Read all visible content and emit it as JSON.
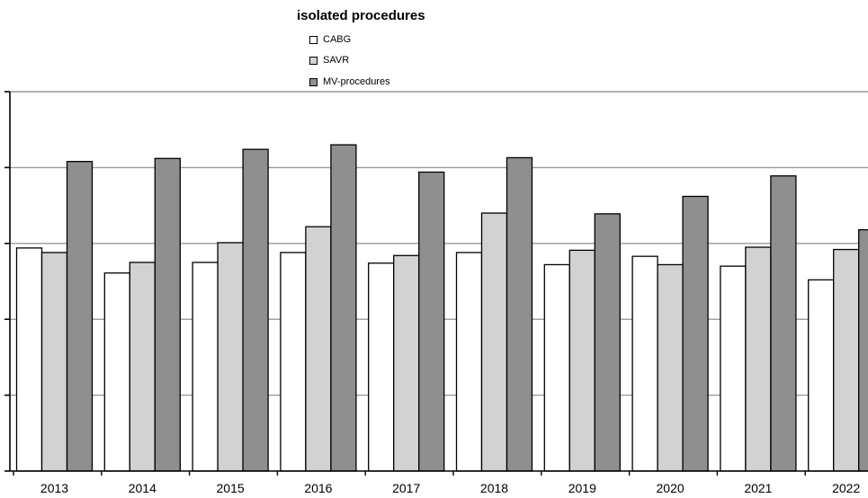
{
  "chart_data": {
    "type": "bar",
    "title": "isolated procedures",
    "xlabel": "",
    "ylabel": "",
    "categories": [
      "2013",
      "2014",
      "2015",
      "2016",
      "2017",
      "2018",
      "2019",
      "2020",
      "2021",
      "2022"
    ],
    "series": [
      {
        "name": "CABG",
        "color": "#ffffff",
        "values": [
          2.94,
          2.61,
          2.75,
          2.88,
          2.74,
          2.88,
          2.72,
          2.83,
          2.7,
          2.52
        ]
      },
      {
        "name": "SAVR",
        "color": "#d2d2d2",
        "values": [
          2.88,
          2.75,
          3.01,
          3.22,
          2.84,
          3.4,
          2.91,
          2.72,
          2.95,
          2.92
        ]
      },
      {
        "name": "MV-procedures",
        "color": "#8f8f8f",
        "values": [
          4.08,
          4.12,
          4.24,
          4.3,
          3.94,
          4.13,
          3.39,
          3.62,
          3.89,
          3.18
        ]
      }
    ],
    "ylim": [
      0,
      5
    ],
    "grid": true,
    "legend_position": "top-center"
  }
}
